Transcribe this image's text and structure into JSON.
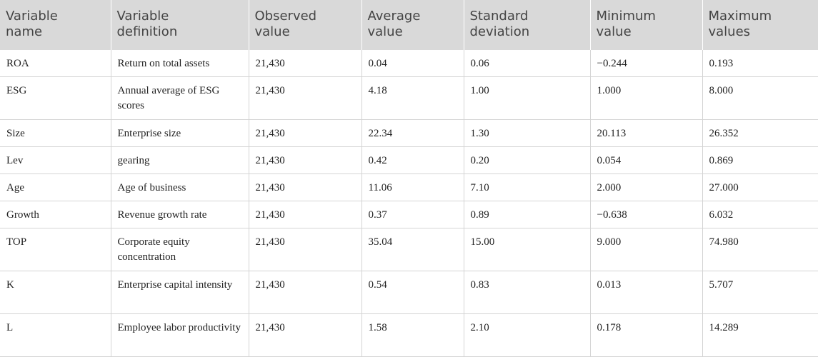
{
  "table": {
    "headers": [
      [
        "Variable",
        "name"
      ],
      [
        "Variable",
        "definition"
      ],
      [
        "Observed",
        "value"
      ],
      [
        "Average",
        "value"
      ],
      [
        "Standard",
        "deviation"
      ],
      [
        "Minimum",
        "value"
      ],
      [
        "Maximum",
        "values"
      ]
    ],
    "rows": [
      [
        "ROA",
        "Return on total assets",
        "21,430",
        "0.04",
        "0.06",
        "−0.244",
        "0.193"
      ],
      [
        "ESG",
        "Annual average of ESG scores",
        "21,430",
        "4.18",
        "1.00",
        "1.000",
        "8.000"
      ],
      [
        "Size",
        "Enterprise size",
        "21,430",
        "22.34",
        "1.30",
        "20.113",
        "26.352"
      ],
      [
        "Lev",
        "gearing",
        "21,430",
        "0.42",
        "0.20",
        "0.054",
        "0.869"
      ],
      [
        "Age",
        "Age of business",
        "21,430",
        "11.06",
        "7.10",
        "2.000",
        "27.000"
      ],
      [
        "Growth",
        "Revenue growth rate",
        "21,430",
        "0.37",
        "0.89",
        "−0.638",
        "6.032"
      ],
      [
        "TOP",
        "Corporate equity concentration",
        "21,430",
        "35.04",
        "15.00",
        "9.000",
        "74.980"
      ],
      [
        "K",
        "Enterprise capital intensity",
        "21,430",
        "0.54",
        "0.83",
        "0.013",
        "5.707"
      ],
      [
        "L",
        "Employee labor productivity",
        "21,430",
        "1.58",
        "2.10",
        "0.178",
        "14.289"
      ]
    ]
  }
}
